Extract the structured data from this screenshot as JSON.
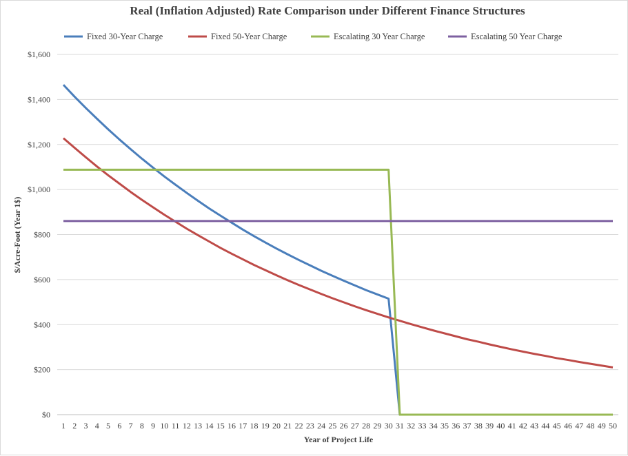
{
  "chart_data": {
    "type": "line",
    "title": "Real (Inflation Adjusted)  Rate Comparison under Different Finance Structures",
    "xlabel": "Year of Project Life",
    "ylabel": "$/Acre-Foot (Year 1$)",
    "ylim": [
      0,
      1600
    ],
    "xlim": [
      1,
      50
    ],
    "y_ticks": [
      "$0",
      "$200",
      "$400",
      "$600",
      "$800",
      "$1,000",
      "$1,200",
      "$1,400",
      "$1,600"
    ],
    "y_tick_values": [
      0,
      200,
      400,
      600,
      800,
      1000,
      1200,
      1400,
      1600
    ],
    "x": [
      1,
      2,
      3,
      4,
      5,
      6,
      7,
      8,
      9,
      10,
      11,
      12,
      13,
      14,
      15,
      16,
      17,
      18,
      19,
      20,
      21,
      22,
      23,
      24,
      25,
      26,
      27,
      28,
      29,
      30,
      31,
      32,
      33,
      34,
      35,
      36,
      37,
      38,
      39,
      40,
      41,
      42,
      43,
      44,
      45,
      46,
      47,
      48,
      49,
      50
    ],
    "grid": true,
    "legend_position": "top",
    "series": [
      {
        "name": "Fixed 30-Year Charge",
        "color": "#4a7ebb",
        "values": [
          1465,
          1412,
          1362,
          1314,
          1267,
          1222,
          1179,
          1137,
          1097,
          1058,
          1021,
          985,
          950,
          916,
          884,
          853,
          822,
          793,
          765,
          738,
          712,
          687,
          663,
          639,
          617,
          595,
          574,
          553,
          534,
          515,
          0,
          0,
          0,
          0,
          0,
          0,
          0,
          0,
          0,
          0,
          0,
          0,
          0,
          0,
          0,
          0,
          0,
          0,
          0,
          0
        ]
      },
      {
        "name": "Fixed 50-Year Charge",
        "color": "#be4b48",
        "values": [
          1228,
          1185,
          1143,
          1102,
          1063,
          1026,
          989,
          954,
          921,
          888,
          857,
          826,
          797,
          769,
          741,
          715,
          690,
          665,
          642,
          619,
          597,
          576,
          556,
          536,
          517,
          499,
          481,
          464,
          448,
          432,
          417,
          402,
          388,
          374,
          361,
          348,
          335,
          324,
          312,
          301,
          290,
          280,
          270,
          261,
          251,
          243,
          234,
          226,
          218,
          210
        ]
      },
      {
        "name": "Escalating 30 Year Charge",
        "color": "#98b954",
        "values": [
          1088,
          1088,
          1088,
          1088,
          1088,
          1088,
          1088,
          1088,
          1088,
          1088,
          1088,
          1088,
          1088,
          1088,
          1088,
          1088,
          1088,
          1088,
          1088,
          1088,
          1088,
          1088,
          1088,
          1088,
          1088,
          1088,
          1088,
          1088,
          1088,
          1088,
          0,
          0,
          0,
          0,
          0,
          0,
          0,
          0,
          0,
          0,
          0,
          0,
          0,
          0,
          0,
          0,
          0,
          0,
          0,
          0
        ]
      },
      {
        "name": "Escalating 50 Year Charge",
        "color": "#7d60a0",
        "values": [
          860,
          860,
          860,
          860,
          860,
          860,
          860,
          860,
          860,
          860,
          860,
          860,
          860,
          860,
          860,
          860,
          860,
          860,
          860,
          860,
          860,
          860,
          860,
          860,
          860,
          860,
          860,
          860,
          860,
          860,
          860,
          860,
          860,
          860,
          860,
          860,
          860,
          860,
          860,
          860,
          860,
          860,
          860,
          860,
          860,
          860,
          860,
          860,
          860,
          860
        ]
      }
    ]
  }
}
